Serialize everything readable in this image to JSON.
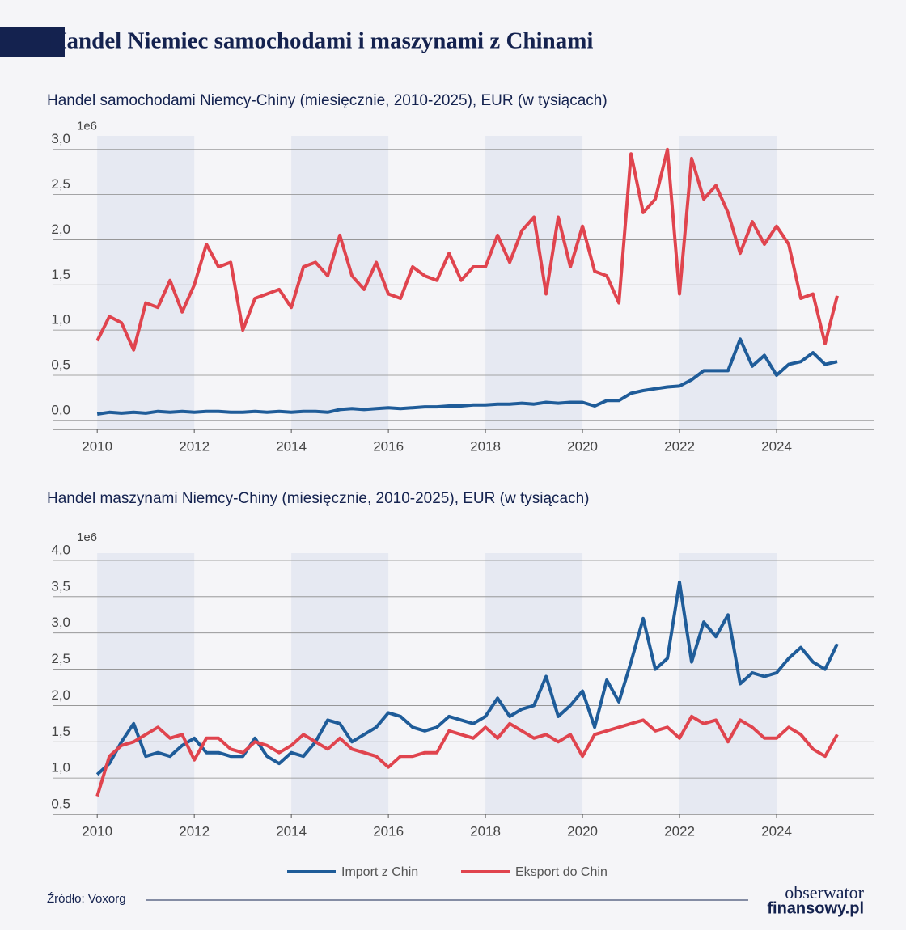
{
  "header": {
    "title": "Handel Niemiec samochodami i maszynami z Chinami"
  },
  "chart_data": [
    {
      "type": "line",
      "title": "Handel samochodami Niemcy-Chiny (miesięcznie, 2010-2025), EUR (w tysiącach)",
      "y_offset_label": "1e6",
      "x": [
        2010,
        2010.25,
        2010.5,
        2010.75,
        2011,
        2011.25,
        2011.5,
        2011.75,
        2012,
        2012.25,
        2012.5,
        2012.75,
        2013,
        2013.25,
        2013.5,
        2013.75,
        2014,
        2014.25,
        2014.5,
        2014.75,
        2015,
        2015.25,
        2015.5,
        2015.75,
        2016,
        2016.25,
        2016.5,
        2016.75,
        2017,
        2017.25,
        2017.5,
        2017.75,
        2018,
        2018.25,
        2018.5,
        2018.75,
        2019,
        2019.25,
        2019.5,
        2019.75,
        2020,
        2020.25,
        2020.5,
        2020.75,
        2021,
        2021.25,
        2021.5,
        2021.75,
        2022,
        2022.25,
        2022.5,
        2022.75,
        2023,
        2023.25,
        2023.5,
        2023.75,
        2024,
        2024.25,
        2024.5,
        2024.75,
        2025,
        2025.25
      ],
      "series": [
        {
          "color": "#1f5c99",
          "values": [
            0.07,
            0.09,
            0.08,
            0.09,
            0.08,
            0.1,
            0.09,
            0.1,
            0.09,
            0.1,
            0.1,
            0.09,
            0.09,
            0.1,
            0.09,
            0.1,
            0.09,
            0.1,
            0.1,
            0.09,
            0.12,
            0.13,
            0.12,
            0.13,
            0.14,
            0.13,
            0.14,
            0.15,
            0.15,
            0.16,
            0.16,
            0.17,
            0.17,
            0.18,
            0.18,
            0.19,
            0.18,
            0.2,
            0.19,
            0.2,
            0.2,
            0.16,
            0.22,
            0.22,
            0.3,
            0.33,
            0.35,
            0.37,
            0.38,
            0.45,
            0.55,
            0.55,
            0.55,
            0.9,
            0.6,
            0.72,
            0.5,
            0.62,
            0.65,
            0.75,
            0.62,
            0.65
          ]
        },
        {
          "color": "#e0444e",
          "values": [
            0.88,
            1.15,
            1.08,
            0.78,
            1.3,
            1.25,
            1.55,
            1.2,
            1.5,
            1.95,
            1.7,
            1.75,
            1.0,
            1.35,
            1.4,
            1.45,
            1.25,
            1.7,
            1.75,
            1.6,
            2.05,
            1.6,
            1.45,
            1.75,
            1.4,
            1.35,
            1.7,
            1.6,
            1.55,
            1.85,
            1.55,
            1.7,
            1.7,
            2.05,
            1.75,
            2.1,
            2.25,
            1.4,
            2.25,
            1.7,
            2.15,
            1.65,
            1.6,
            1.3,
            2.95,
            2.3,
            2.45,
            3.0,
            1.4,
            2.9,
            2.45,
            2.6,
            2.3,
            1.85,
            2.2,
            1.95,
            2.15,
            1.95,
            1.35,
            1.4,
            0.85,
            1.38
          ]
        }
      ],
      "xlim": [
        2009.08,
        2026
      ],
      "ylim": [
        -0.1,
        3.15
      ],
      "xticks": [
        2010,
        2012,
        2014,
        2016,
        2018,
        2020,
        2022,
        2024
      ],
      "yticks": [
        {
          "value": 0,
          "label": "0,0"
        },
        {
          "value": 0.5,
          "label": "0,5"
        },
        {
          "value": 1,
          "label": "1,0"
        },
        {
          "value": 1.5,
          "label": "1,5"
        },
        {
          "value": 2,
          "label": "2,0"
        },
        {
          "value": 2.5,
          "label": "2,5"
        },
        {
          "value": 3,
          "label": "3,0"
        }
      ],
      "shaded_spans": [
        [
          2010,
          2012
        ],
        [
          2014,
          2016
        ],
        [
          2018,
          2020
        ],
        [
          2022,
          2024
        ]
      ],
      "grid": true
    },
    {
      "type": "line",
      "title": "Handel maszynami Niemcy-Chiny (miesięcznie, 2010-2025), EUR (w tysiącach)",
      "y_offset_label": "1e6",
      "x": [
        2010,
        2010.25,
        2010.5,
        2010.75,
        2011,
        2011.25,
        2011.5,
        2011.75,
        2012,
        2012.25,
        2012.5,
        2012.75,
        2013,
        2013.25,
        2013.5,
        2013.75,
        2014,
        2014.25,
        2014.5,
        2014.75,
        2015,
        2015.25,
        2015.5,
        2015.75,
        2016,
        2016.25,
        2016.5,
        2016.75,
        2017,
        2017.25,
        2017.5,
        2017.75,
        2018,
        2018.25,
        2018.5,
        2018.75,
        2019,
        2019.25,
        2019.5,
        2019.75,
        2020,
        2020.25,
        2020.5,
        2020.75,
        2021,
        2021.25,
        2021.5,
        2021.75,
        2022,
        2022.25,
        2022.5,
        2022.75,
        2023,
        2023.25,
        2023.5,
        2023.75,
        2024,
        2024.25,
        2024.5,
        2024.75,
        2025,
        2025.25
      ],
      "series": [
        {
          "name": "Import z Chin",
          "color": "#1f5c99",
          "values": [
            1.05,
            1.2,
            1.5,
            1.75,
            1.3,
            1.35,
            1.3,
            1.45,
            1.55,
            1.35,
            1.35,
            1.3,
            1.3,
            1.55,
            1.3,
            1.2,
            1.35,
            1.3,
            1.5,
            1.8,
            1.75,
            1.5,
            1.6,
            1.7,
            1.9,
            1.85,
            1.7,
            1.65,
            1.7,
            1.85,
            1.8,
            1.75,
            1.85,
            2.1,
            1.85,
            1.95,
            2.0,
            2.4,
            1.85,
            2.0,
            2.2,
            1.7,
            2.35,
            2.05,
            2.6,
            3.2,
            2.5,
            2.65,
            3.7,
            2.6,
            3.15,
            2.95,
            3.25,
            2.3,
            2.45,
            2.4,
            2.45,
            2.65,
            2.8,
            2.6,
            2.5,
            2.85
          ]
        },
        {
          "name": "Eksport do Chin",
          "color": "#e0444e",
          "values": [
            0.75,
            1.3,
            1.45,
            1.5,
            1.6,
            1.7,
            1.55,
            1.6,
            1.25,
            1.55,
            1.55,
            1.4,
            1.35,
            1.5,
            1.45,
            1.35,
            1.45,
            1.6,
            1.5,
            1.4,
            1.55,
            1.4,
            1.35,
            1.3,
            1.15,
            1.3,
            1.3,
            1.35,
            1.35,
            1.65,
            1.6,
            1.55,
            1.7,
            1.55,
            1.75,
            1.65,
            1.55,
            1.6,
            1.5,
            1.6,
            1.3,
            1.6,
            1.65,
            1.7,
            1.75,
            1.8,
            1.65,
            1.7,
            1.55,
            1.85,
            1.75,
            1.8,
            1.5,
            1.8,
            1.7,
            1.55,
            1.55,
            1.7,
            1.6,
            1.4,
            1.3,
            1.6
          ]
        }
      ],
      "xlim": [
        2009.08,
        2026
      ],
      "ylim": [
        0.5,
        4.1
      ],
      "xticks": [
        2010,
        2012,
        2014,
        2016,
        2018,
        2020,
        2022,
        2024
      ],
      "yticks": [
        {
          "value": 0.5,
          "label": "0,5"
        },
        {
          "value": 1,
          "label": "1,0"
        },
        {
          "value": 1.5,
          "label": "1,5"
        },
        {
          "value": 2,
          "label": "2,0"
        },
        {
          "value": 2.5,
          "label": "2,5"
        },
        {
          "value": 3,
          "label": "3,0"
        },
        {
          "value": 3.5,
          "label": "3,5"
        },
        {
          "value": 4,
          "label": "4,0"
        }
      ],
      "shaded_spans": [
        [
          2010,
          2012
        ],
        [
          2014,
          2016
        ],
        [
          2018,
          2020
        ],
        [
          2022,
          2024
        ]
      ],
      "grid": true
    }
  ],
  "footer": {
    "source": "Źródło: Voxorg",
    "logo_top": "obserwator",
    "logo_bottom": "finansowy.pl"
  }
}
